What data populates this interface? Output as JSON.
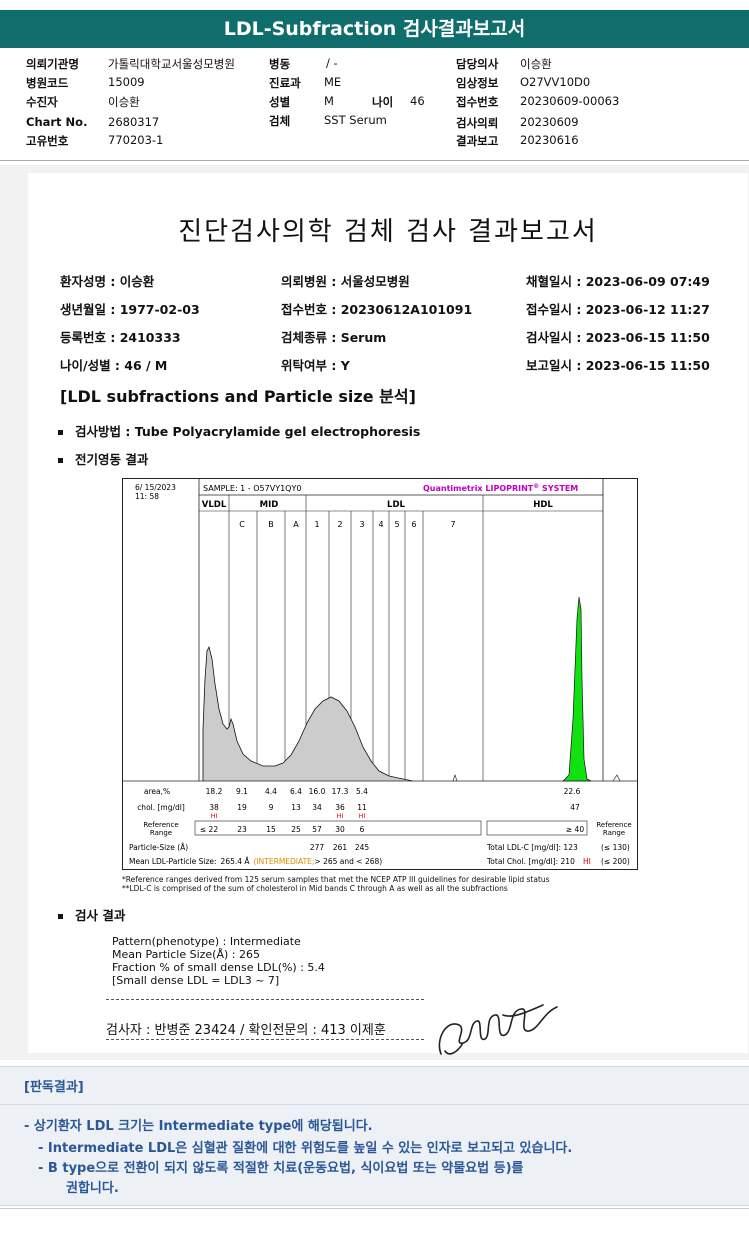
{
  "header": {
    "title": "LDL-Subfraction 검사결과보고서",
    "fields": [
      {
        "label": "의뢰기관명",
        "value": "가톨릭대학교서울성모병원"
      },
      {
        "label": "병원코드",
        "value": "15009"
      },
      {
        "label": "수진자",
        "value": "이승환"
      },
      {
        "label": "Chart No.",
        "value": "2680317"
      },
      {
        "label": "고유번호",
        "value": "770203-1"
      },
      {
        "label": "병동",
        "value": "/ -"
      },
      {
        "label": "진료과",
        "value": "ME"
      },
      {
        "label": "성별",
        "value": "M"
      },
      {
        "label": "나이",
        "value": "46"
      },
      {
        "label": "검체",
        "value": "SST Serum"
      },
      {
        "label": "담당의사",
        "value": "이승환"
      },
      {
        "label": "임상정보",
        "value": "O27VV10D0"
      },
      {
        "label": "접수번호",
        "value": "20230609-00063"
      },
      {
        "label": "검사의뢰",
        "value": "20230609"
      },
      {
        "label": "결과보고",
        "value": "20230616"
      }
    ]
  },
  "report": {
    "title": "진단검사의학 검체 검사 결과보고서",
    "info": [
      {
        "label": "환자성명 : 이승환"
      },
      {
        "label": "의뢰병원 : 서울성모병원"
      },
      {
        "label": "채혈일시 : 2023-06-09 07:49"
      },
      {
        "label": "생년월일 : 1977-02-03"
      },
      {
        "label": "접수번호 : 20230612A101091"
      },
      {
        "label": "접수일시 : 2023-06-12 11:27"
      },
      {
        "label": "등록번호 : 2410333"
      },
      {
        "label": "검체종류 : Serum"
      },
      {
        "label": "검사일시 : 2023-06-15 11:50"
      },
      {
        "label": "나이/성별 : 46 / M"
      },
      {
        "label": "위탁여부 : Y"
      },
      {
        "label": "보고일시 : 2023-06-15 11:50"
      }
    ],
    "section_title": "[LDL subfractions and Particle size 분석]",
    "method": "검사방법 : Tube Polyacrylamide gel electrophoresis",
    "electro": "전기영동 결과",
    "result_head": "검사 결과",
    "result_lines": [
      "Pattern(phenotype) : Intermediate",
      "Mean Particle Size(Å) : 265",
      "Fraction % of small dense LDL(%) : 5.4",
      "[Small dense LDL = LDL3 ~ 7]"
    ],
    "footnotes": [
      "*Reference ranges derived from 125 serum samples that met the NCEP ATP III guidelines for desirable lipid status",
      "**LDL-C is comprised of the sum of cholesterol in Mid bands C through A as well as all the subfractions"
    ],
    "signature": "검사자 : 반병준  23424  /  확인전문의 : 413  이제훈"
  },
  "chart_data": {
    "type": "area",
    "header": {
      "date": "6/ 15/2023",
      "time": "11: 58",
      "sample": "SAMPLE:   1 - O57VY1QY0",
      "system": "Quantimetrix LIPOPRINT",
      "system_mark": "®",
      "system_tail": " SYSTEM"
    },
    "groups": [
      "VLDL",
      "MID",
      "LDL",
      "HDL"
    ],
    "bands": [
      "C",
      "B",
      "A",
      "1",
      "2",
      "3",
      "4",
      "5",
      "6",
      "7"
    ],
    "band_colors": {
      "VLDL": "#a31aff",
      "C": "#6a1aff",
      "B": "#2a40ff",
      "A": "#1a8cff",
      "1": "#ffff00",
      "2": "#ffb000",
      "3": "#ff2a10",
      "4": "#ff2a10",
      "HDL": "#11e011"
    },
    "rows": {
      "area_label": "area,%",
      "area": [
        "18.2",
        "9.1",
        "4.4",
        "6.4",
        "16.0",
        "17.3",
        "5.4"
      ],
      "area_hdl": "22.6",
      "chol_label": "chol. [mg/dl]",
      "chol": [
        "38",
        "19",
        "9",
        "13",
        "34",
        "36",
        "11"
      ],
      "chol_hdl": "47",
      "chol_flags": [
        "HI",
        "",
        "",
        "",
        "",
        "HI",
        "HI"
      ],
      "ref_label": "Reference Range",
      "ref": [
        "≤ 22",
        "23",
        "15",
        "25",
        "57",
        "30",
        "6"
      ],
      "ref_hdl": "≥ 40",
      "particle_label": "Particle-Size (Å)",
      "particle": [
        "277",
        "261",
        "245"
      ],
      "mean_label": "Mean LDL-Particle Size:",
      "mean_value": "265.4 Å",
      "mean_class": "(INTERMEDIATE;",
      "mean_range": "> 265 and < 268)",
      "total_ldl": "Total LDL-C [mg/dl]:  123",
      "total_ldl_ref": "(≤ 130)",
      "total_chol": "Total Chol. [mg/dl]:  210",
      "total_chol_flag": "HI",
      "total_chol_ref": "(≤ 200)"
    }
  },
  "interpretation": {
    "title": "[판독결과]",
    "lines": [
      "-  상기환자 LDL 크기는 Intermediate type에 해당됩니다.",
      "-  Intermediate LDL은 심혈관 질환에 대한 위험도를 높일 수 있는 인자로 보고되고 있습니다.",
      "-  B type으로 전환이 되지 않도록 적절한 치료(운동요법, 식이요법 또는 약물요법 등)를",
      "권합니다."
    ]
  }
}
